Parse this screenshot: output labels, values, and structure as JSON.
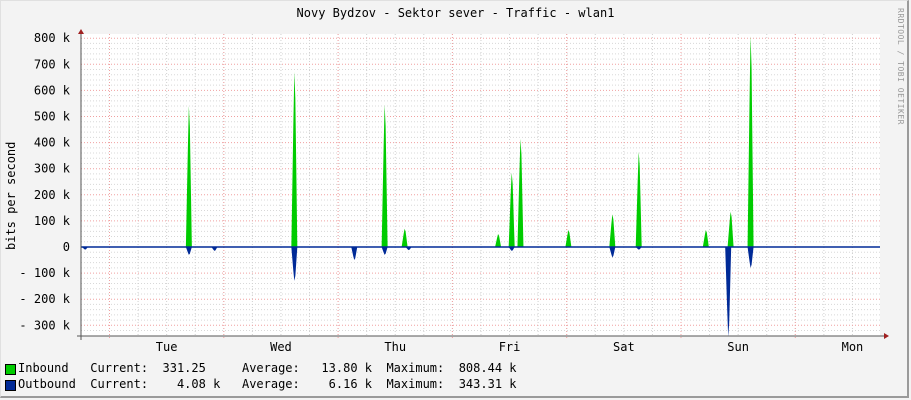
{
  "title": "Novy Bydzov - Sektor sever - Traffic - wlan1",
  "watermark": "RRDTOOL / TOBI OETIKER",
  "chart_data": {
    "type": "area",
    "title": "Novy Bydzov - Sektor sever - Traffic - wlan1",
    "xlabel": "",
    "ylabel": "bits per second",
    "ylim": [
      -340000,
      820000
    ],
    "y_ticks": [
      "800 k",
      "700 k",
      "600 k",
      "500 k",
      "400 k",
      "300 k",
      "200 k",
      "100 k",
      "0",
      "- 100 k",
      "- 200 k",
      "- 300 k"
    ],
    "x_ticks": [
      "Tue",
      "Wed",
      "Thu",
      "Fri",
      "Sat",
      "Sun",
      "Mon"
    ],
    "grid": true,
    "legend_position": "bottom",
    "series": [
      {
        "name": "Inbound",
        "color": "#00cc00",
        "direction": "positive",
        "spikes": [
          {
            "x": 0.135,
            "value": 540000
          },
          {
            "x": 0.267,
            "value": 670000
          },
          {
            "x": 0.38,
            "value": 545000
          },
          {
            "x": 0.405,
            "value": 70000
          },
          {
            "x": 0.522,
            "value": 50000
          },
          {
            "x": 0.539,
            "value": 285000
          },
          {
            "x": 0.55,
            "value": 415000
          },
          {
            "x": 0.61,
            "value": 65000
          },
          {
            "x": 0.665,
            "value": 125000
          },
          {
            "x": 0.698,
            "value": 365000
          },
          {
            "x": 0.782,
            "value": 65000
          },
          {
            "x": 0.813,
            "value": 135000
          },
          {
            "x": 0.838,
            "value": 808440
          }
        ]
      },
      {
        "name": "Outbound",
        "color": "#002a97",
        "direction": "negative",
        "spikes": [
          {
            "x": 0.005,
            "value": 10000
          },
          {
            "x": 0.135,
            "value": 30000
          },
          {
            "x": 0.167,
            "value": 15000
          },
          {
            "x": 0.267,
            "value": 130000
          },
          {
            "x": 0.342,
            "value": 50000
          },
          {
            "x": 0.38,
            "value": 30000
          },
          {
            "x": 0.41,
            "value": 12000
          },
          {
            "x": 0.539,
            "value": 15000
          },
          {
            "x": 0.665,
            "value": 40000
          },
          {
            "x": 0.698,
            "value": 10000
          },
          {
            "x": 0.81,
            "value": 343310
          },
          {
            "x": 0.838,
            "value": 80000
          }
        ]
      }
    ],
    "stats": [
      {
        "name": "Inbound",
        "current": "331.25",
        "average": "13.80 k",
        "maximum": "808.44 k"
      },
      {
        "name": "Outbound",
        "current": "4.08 k",
        "average": "6.16 k",
        "maximum": "343.31 k"
      }
    ]
  },
  "legend": {
    "inbound": "Inbound   Current:  331.25     Average:   13.80 k  Maximum:  808.44 k",
    "outbound": "Outbound  Current:    4.08 k   Average:    6.16 k  Maximum:  343.31 k"
  }
}
